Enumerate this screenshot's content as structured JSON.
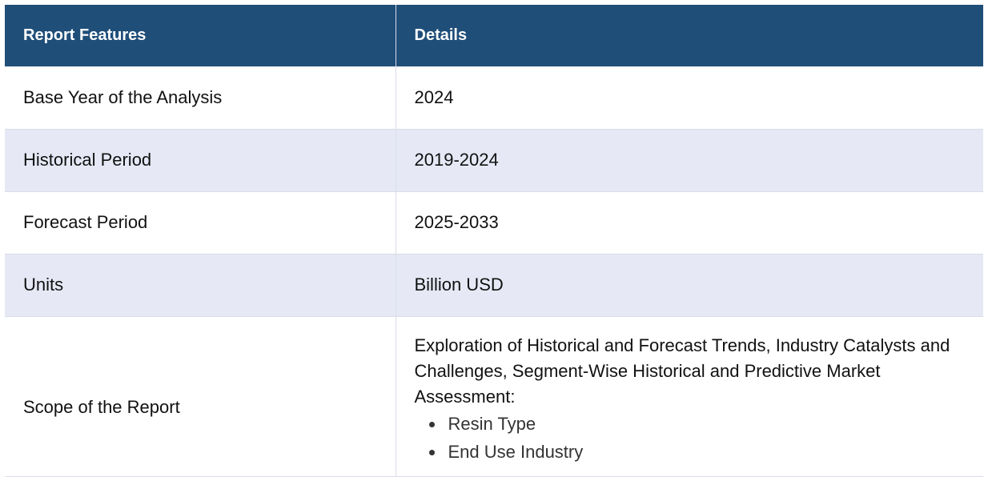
{
  "table": {
    "headers": [
      "Report Features",
      "Details"
    ],
    "rows": [
      {
        "feature": "Base Year of the Analysis",
        "details": "2024"
      },
      {
        "feature": "Historical Period",
        "details": "2019-2024"
      },
      {
        "feature": "Forecast Period",
        "details": "2025-2033"
      },
      {
        "feature": "Units",
        "details": "Billion USD"
      }
    ],
    "scope": {
      "feature": "Scope of the Report",
      "description": "Exploration of Historical and Forecast Trends, Industry Catalysts and Challenges, Segment-Wise Historical and Predictive Market Assessment:",
      "items": [
        "Resin Type",
        "End Use Industry"
      ]
    }
  },
  "colors": {
    "header_bg": "#1f4e79",
    "shaded_row": "#e6e9f5",
    "border": "#d9dde6"
  }
}
